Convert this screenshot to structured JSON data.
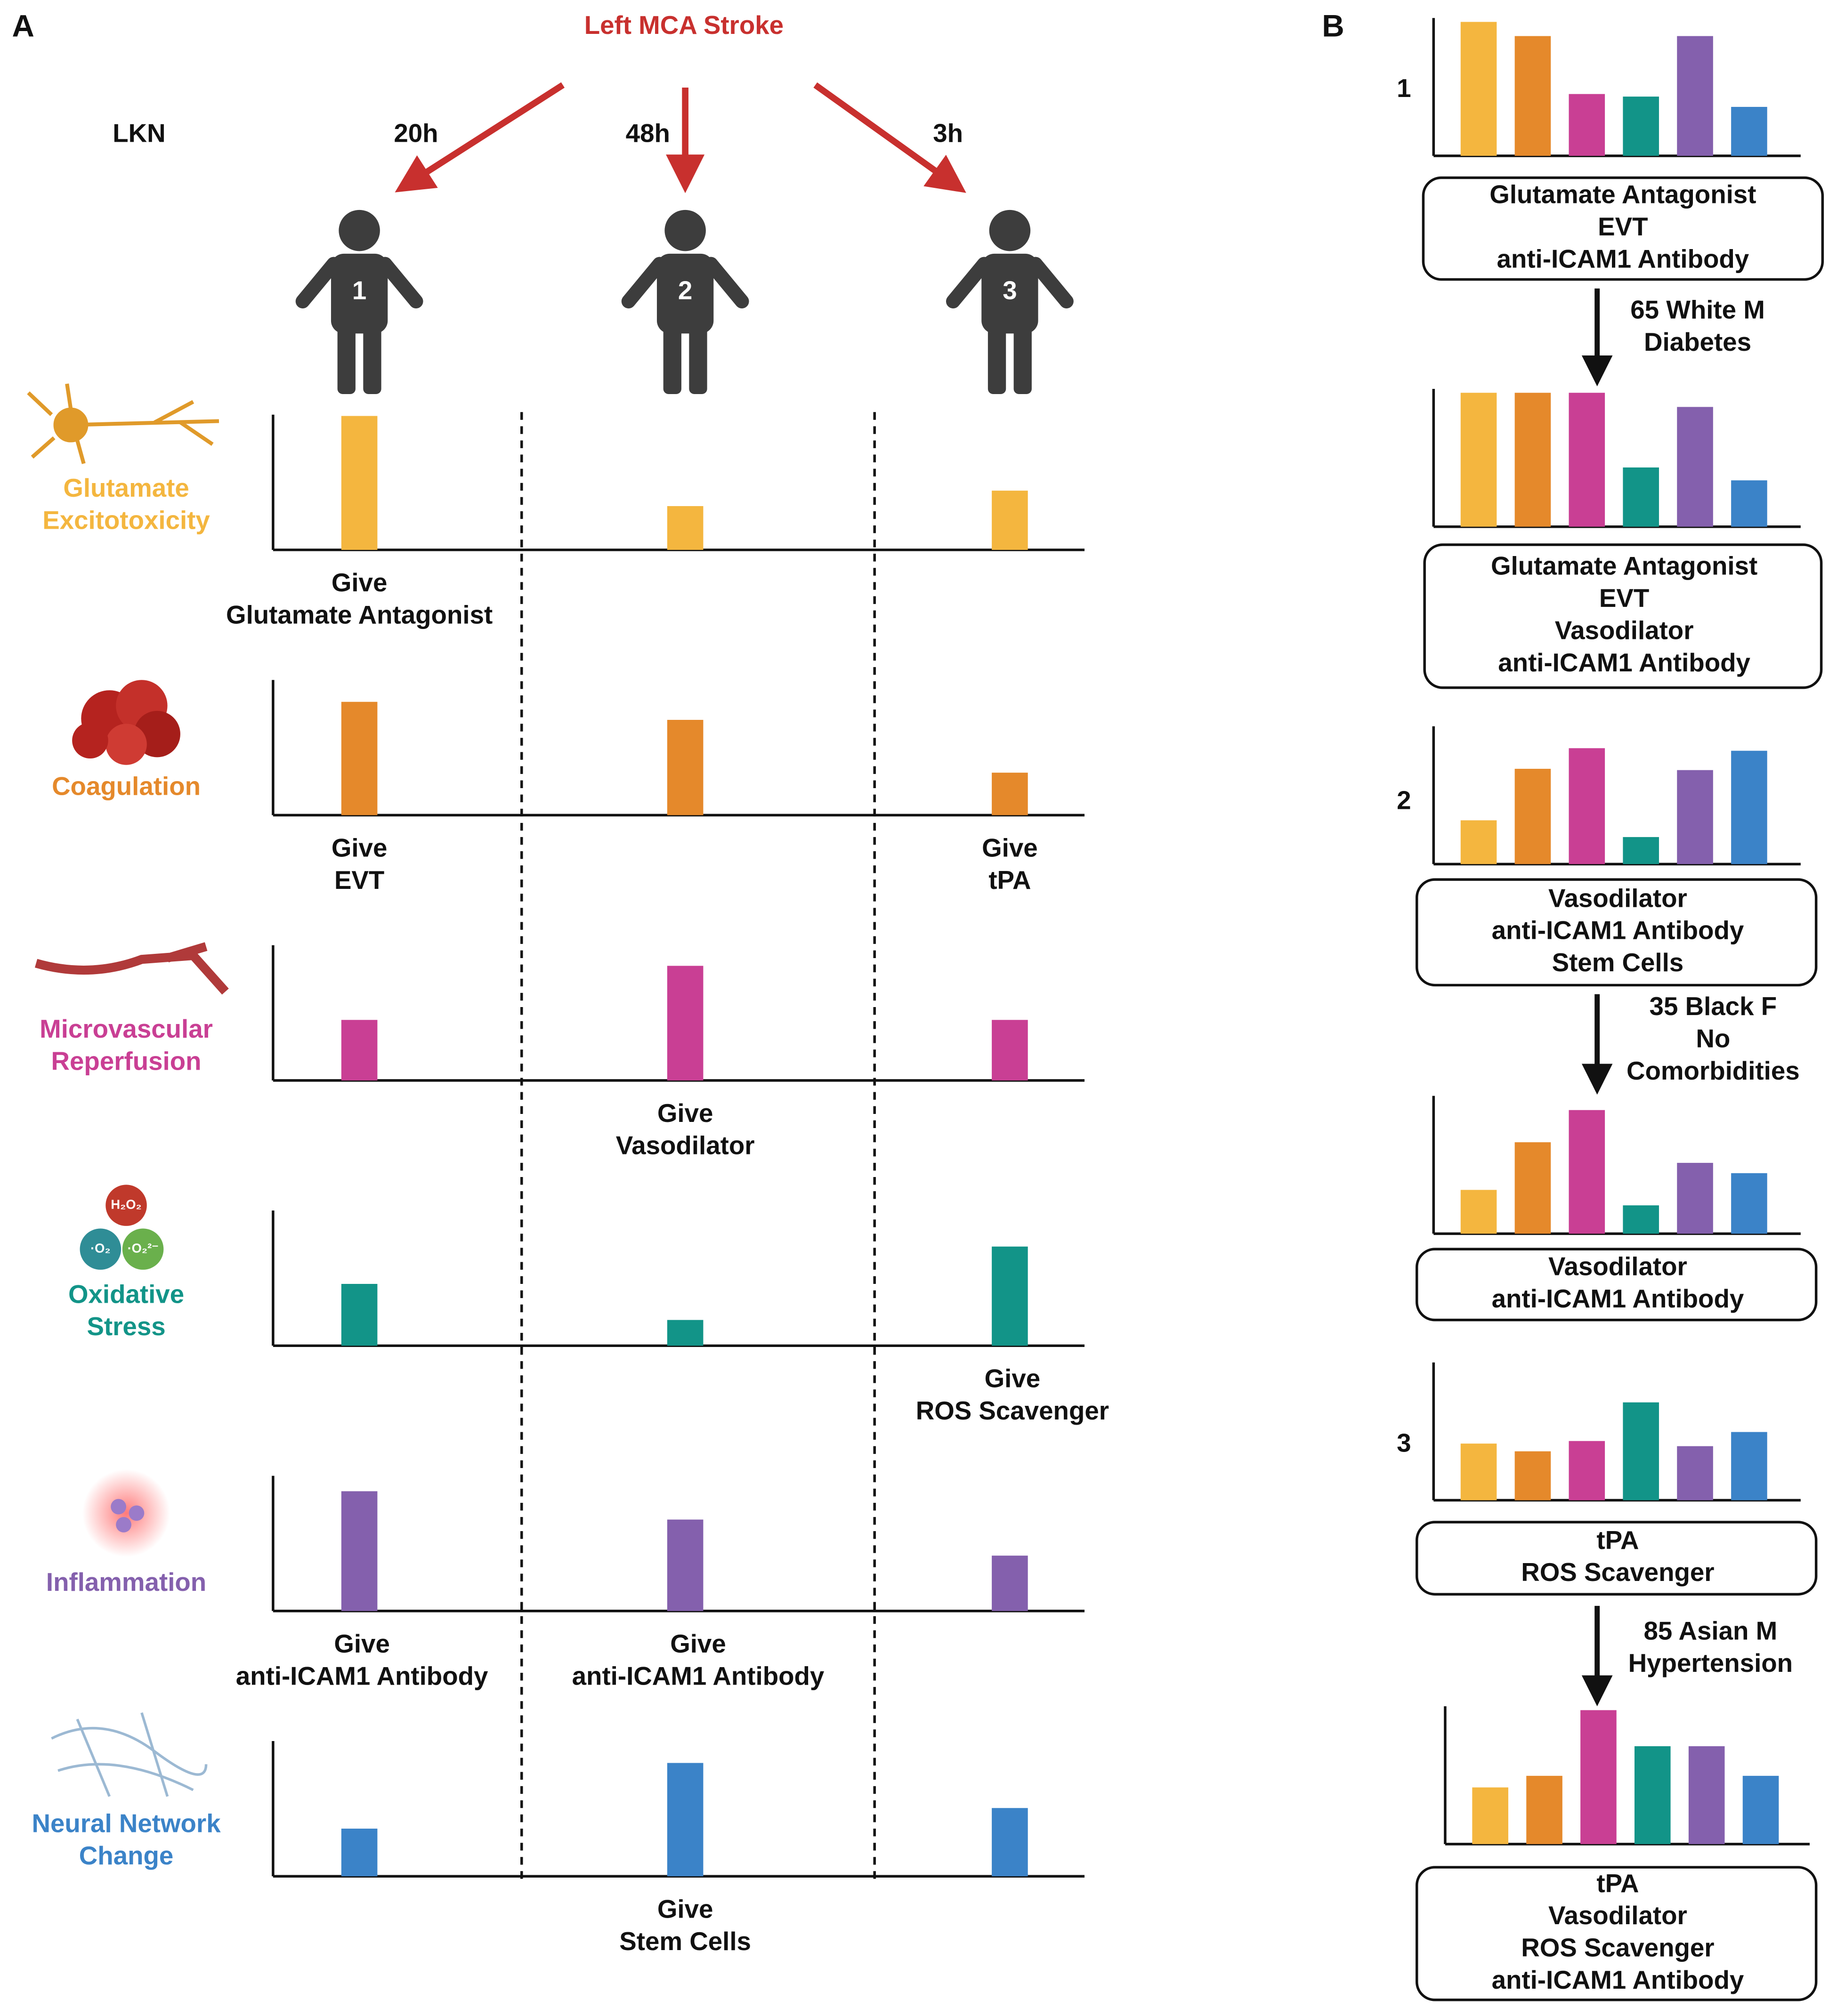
{
  "panel_a": {
    "label": "A",
    "title": "Left MCA Stroke",
    "onset_label": "LKN",
    "times": [
      "20h",
      "48h",
      "3h"
    ],
    "patients": [
      "1",
      "2",
      "3"
    ],
    "icon_labels": [
      "H₂O₂",
      "·O₂",
      "·O₂²⁻"
    ],
    "rows": [
      {
        "name_lines": [
          "Glutamate",
          "Excitotoxicity"
        ],
        "color": "#f4b63f",
        "values": [
          104,
          34,
          46
        ],
        "actions": [
          [
            "Give",
            "Glutamate Antagonist"
          ],
          null,
          null
        ]
      },
      {
        "name_lines": [
          "Coagulation"
        ],
        "color": "#e5892b",
        "values": [
          88,
          74,
          33
        ],
        "actions": [
          [
            "Give",
            "EVT"
          ],
          null,
          [
            "Give",
            "tPA"
          ]
        ]
      },
      {
        "name_lines": [
          "Microvascular",
          "Reperfusion"
        ],
        "color": "#c93f94",
        "values": [
          47,
          89,
          47
        ],
        "actions": [
          null,
          [
            "Give",
            "Vasodilator"
          ],
          null
        ]
      },
      {
        "name_lines": [
          "Oxidative",
          "Stress"
        ],
        "color": "#129488",
        "values": [
          48,
          20,
          77
        ],
        "actions": [
          null,
          null,
          [
            "Give",
            "ROS Scavenger"
          ]
        ]
      },
      {
        "name_lines": [
          "Inflammation"
        ],
        "color": "#8460ad",
        "values": [
          93,
          71,
          43
        ],
        "actions": [
          [
            "Give",
            "anti-ICAM1 Antibody"
          ],
          [
            "Give",
            "anti-ICAM1 Antibody"
          ],
          null
        ]
      },
      {
        "name_lines": [
          "Neural Network",
          "Change"
        ],
        "color": "#3b83c8",
        "values": [
          37,
          88,
          53
        ],
        "actions": [
          null,
          [
            "Give",
            "Stem Cells"
          ],
          null
        ]
      }
    ]
  },
  "panel_b": {
    "label": "B",
    "colors": [
      "#f4b63f",
      "#e5892b",
      "#c93f94",
      "#129488",
      "#8460ad",
      "#3b83c8"
    ],
    "groups": [
      {
        "patient": "1",
        "before": [
          104,
          93,
          48,
          46,
          93,
          38
        ],
        "before_box": [
          "Glutamate Antagonist",
          "EVT",
          "anti-ICAM1 Antibody"
        ],
        "profile": [
          "65 White M",
          "Diabetes"
        ],
        "after": [
          104,
          104,
          104,
          46,
          93,
          36
        ],
        "after_box": [
          "Glutamate Antagonist",
          "EVT",
          "Vasodilator",
          "anti-ICAM1 Antibody"
        ]
      },
      {
        "patient": "2",
        "before": [
          34,
          74,
          90,
          21,
          73,
          88
        ],
        "before_box": [
          "Vasodilator",
          "anti-ICAM1 Antibody",
          "Stem Cells"
        ],
        "profile": [
          "35 Black F",
          "No",
          "Comorbidities"
        ],
        "after": [
          34,
          71,
          96,
          22,
          55,
          47
        ],
        "after_box": [
          "Vasodilator",
          "anti-ICAM1 Antibody"
        ]
      },
      {
        "patient": "3",
        "before": [
          44,
          38,
          46,
          76,
          42,
          53
        ],
        "before_box": [
          "tPA",
          "ROS Scavenger"
        ],
        "profile": [
          "85 Asian M",
          "Hypertension"
        ],
        "after": [
          44,
          53,
          104,
          76,
          76,
          53
        ],
        "after_box": [
          "tPA",
          "Vasodilator",
          "ROS Scavenger",
          "anti-ICAM1 Antibody"
        ]
      }
    ]
  }
}
